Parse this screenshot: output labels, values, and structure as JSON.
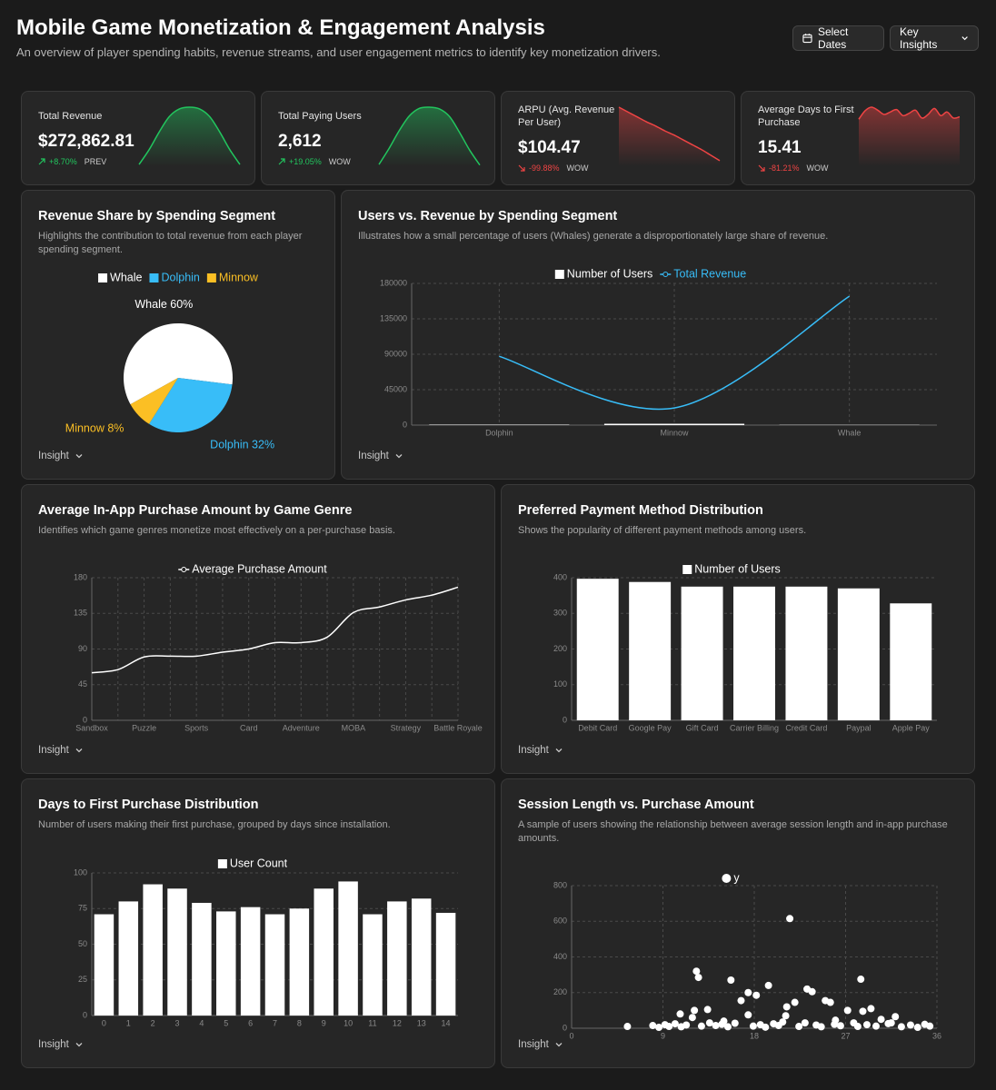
{
  "header": {
    "title": "Mobile Game Monetization & Engagement Analysis",
    "subtitle": "An overview of player spending habits, revenue streams, and user engagement metrics to identify key monetization drivers.",
    "buttons": [
      "Select Dates",
      "Key Insights"
    ]
  },
  "ui": {
    "insight": "Insight"
  },
  "kpis": [
    {
      "label": "Total Revenue",
      "value": "$272,862.81",
      "change": "+8.70%",
      "period": "PREV",
      "color": "#22c55e",
      "sparkline": [
        3,
        28,
        58,
        84,
        97,
        100,
        97,
        84,
        58,
        28,
        3
      ]
    },
    {
      "label": "Total Paying Users",
      "value": "2,612",
      "change": "+19.05%",
      "period": "WOW",
      "color": "#22c55e",
      "sparkline": [
        3,
        30,
        60,
        85,
        98,
        100,
        97,
        84,
        57,
        27,
        2
      ]
    },
    {
      "label": "ARPU (Avg. Revenue Per User)",
      "value": "$104.47",
      "change": "-99.88%",
      "period": "WOW",
      "color": "#ef4444",
      "sparkline": [
        85,
        78,
        71,
        64,
        58,
        51,
        45,
        38,
        31,
        24,
        16,
        8
      ]
    },
    {
      "label": "Average Days to First Purchase",
      "value": "15.41",
      "change": "-81.21%",
      "period": "WOW",
      "color": "#ef4444",
      "sparkline": [
        78,
        92,
        98,
        93,
        86,
        90,
        94,
        84,
        88,
        93,
        80,
        86,
        96,
        84,
        90,
        80,
        82
      ]
    }
  ],
  "chart_data": [
    {
      "type": "pie",
      "title": "Revenue Share by Spending Segment",
      "subtitle": "Highlights the contribution to total revenue from each player spending segment.",
      "categories": [
        "Whale",
        "Dolphin",
        "Minnow"
      ],
      "values": [
        60,
        32,
        8
      ],
      "value_labels": [
        "Whale 60%",
        "Dolphin 32%",
        "Minnow 8%"
      ],
      "colors": [
        "#ffffff",
        "#38bdf8",
        "#fbbf24"
      ]
    },
    {
      "type": "composed",
      "title": "Users vs. Revenue by Spending Segment",
      "subtitle": "Illustrates how a small percentage of users (Whales) generate a disproportionately large share of revenue.",
      "categories": [
        "Dolphin",
        "Minnow",
        "Whale"
      ],
      "series": [
        {
          "name": "Number of Users",
          "color": "#ffffff",
          "kind": "bar",
          "values": [
            600,
            1700,
            312
          ]
        },
        {
          "name": "Total Revenue",
          "color": "#38bdf8",
          "kind": "line",
          "values": [
            87300,
            21800,
            163700
          ]
        }
      ],
      "ylim": [
        0,
        180000
      ],
      "yticks": [
        0,
        45000,
        90000,
        135000,
        180000
      ],
      "grid": true
    },
    {
      "type": "line",
      "title": "Average In-App Purchase Amount by Game Genre",
      "subtitle": "Identifies which game genres monetize most effectively on a per-purchase basis.",
      "categories": [
        "Sandbox",
        null,
        "Puzzle",
        null,
        "Sports",
        null,
        "Card",
        null,
        "Adventure",
        null,
        "MOBA",
        null,
        "Strategy",
        null,
        "Battle Royale"
      ],
      "series": [
        {
          "name": "Average Purchase Amount",
          "color": "#ffffff",
          "values": [
            60,
            64,
            80,
            81,
            81,
            86,
            90,
            98,
            98,
            105,
            136,
            143,
            152,
            158,
            168
          ]
        }
      ],
      "ylim": [
        0,
        180
      ],
      "yticks": [
        0,
        45,
        90,
        135,
        180
      ],
      "grid": true
    },
    {
      "type": "bar",
      "title": "Preferred Payment Method Distribution",
      "subtitle": "Shows the popularity of different payment methods among users.",
      "categories": [
        "Debit Card",
        "Google Pay",
        "Gift Card",
        "Carrier Billing",
        "Credit Card",
        "Paypal",
        "Apple Pay"
      ],
      "series": [
        {
          "name": "Number of Users",
          "color": "#ffffff",
          "values": [
            397,
            388,
            375,
            375,
            375,
            370,
            328
          ]
        }
      ],
      "ylim": [
        0,
        400
      ],
      "yticks": [
        0,
        100,
        200,
        300,
        400
      ],
      "grid": true
    },
    {
      "type": "bar",
      "title": "Days to First Purchase Distribution",
      "subtitle": "Number of users making their first purchase, grouped by days since installation.",
      "categories": [
        "0",
        "1",
        "2",
        "3",
        "4",
        "5",
        "6",
        "7",
        "8",
        "9",
        "10",
        "11",
        "12",
        "13",
        "14"
      ],
      "series": [
        {
          "name": "User Count",
          "color": "#ffffff",
          "values": [
            71,
            80,
            92,
            89,
            79,
            73,
            76,
            71,
            75,
            89,
            94,
            71,
            80,
            82,
            72
          ]
        }
      ],
      "ylim": [
        0,
        100
      ],
      "yticks": [
        0,
        25,
        50,
        75,
        100
      ],
      "grid": true
    },
    {
      "type": "scatter",
      "title": "Session Length vs. Purchase Amount",
      "subtitle": "A sample of users showing the relationship between average session length and in-app purchase amounts.",
      "x": [
        5.5,
        12.3,
        12.5,
        15.7,
        21.5,
        19.4,
        17.4,
        18.2,
        16.7,
        17.4,
        21.2,
        22,
        23.2,
        23.7,
        25,
        25.5,
        28.5,
        29.5,
        28.7,
        27.2,
        30.5,
        31.9,
        10.7,
        12.1,
        13.4,
        11.9,
        21.1,
        8,
        8.6,
        9.2,
        9.6,
        10.2,
        10.8,
        11.3,
        12.8,
        13.6,
        14.2,
        14.8,
        15.4,
        16.1,
        17.9,
        18.6,
        19.1,
        19.9,
        20.4,
        22.4,
        23,
        24.1,
        24.6,
        25.9,
        26.5,
        27.8,
        28.2,
        29.1,
        30,
        31.2,
        32.5,
        33.4,
        34.1,
        34.8,
        35.3,
        15,
        20.8,
        26,
        31.5
      ],
      "series": [
        {
          "name": "y",
          "color": "#ffffff",
          "values": [
            10,
            320,
            285,
            270,
            615,
            240,
            200,
            185,
            155,
            75,
            120,
            145,
            220,
            205,
            155,
            145,
            275,
            110,
            95,
            100,
            50,
            65,
            80,
            100,
            105,
            60,
            70,
            15,
            5,
            20,
            10,
            25,
            8,
            18,
            12,
            30,
            15,
            22,
            8,
            28,
            12,
            20,
            6,
            25,
            15,
            10,
            30,
            18,
            8,
            22,
            14,
            30,
            10,
            20,
            12,
            26,
            8,
            18,
            5,
            22,
            12,
            40,
            35,
            45,
            30
          ]
        }
      ],
      "xlim": [
        0,
        36
      ],
      "xticks": [
        0,
        9,
        18,
        27,
        36
      ],
      "ylim": [
        0,
        800
      ],
      "yticks": [
        0,
        200,
        400,
        600,
        800
      ],
      "grid": true
    }
  ]
}
